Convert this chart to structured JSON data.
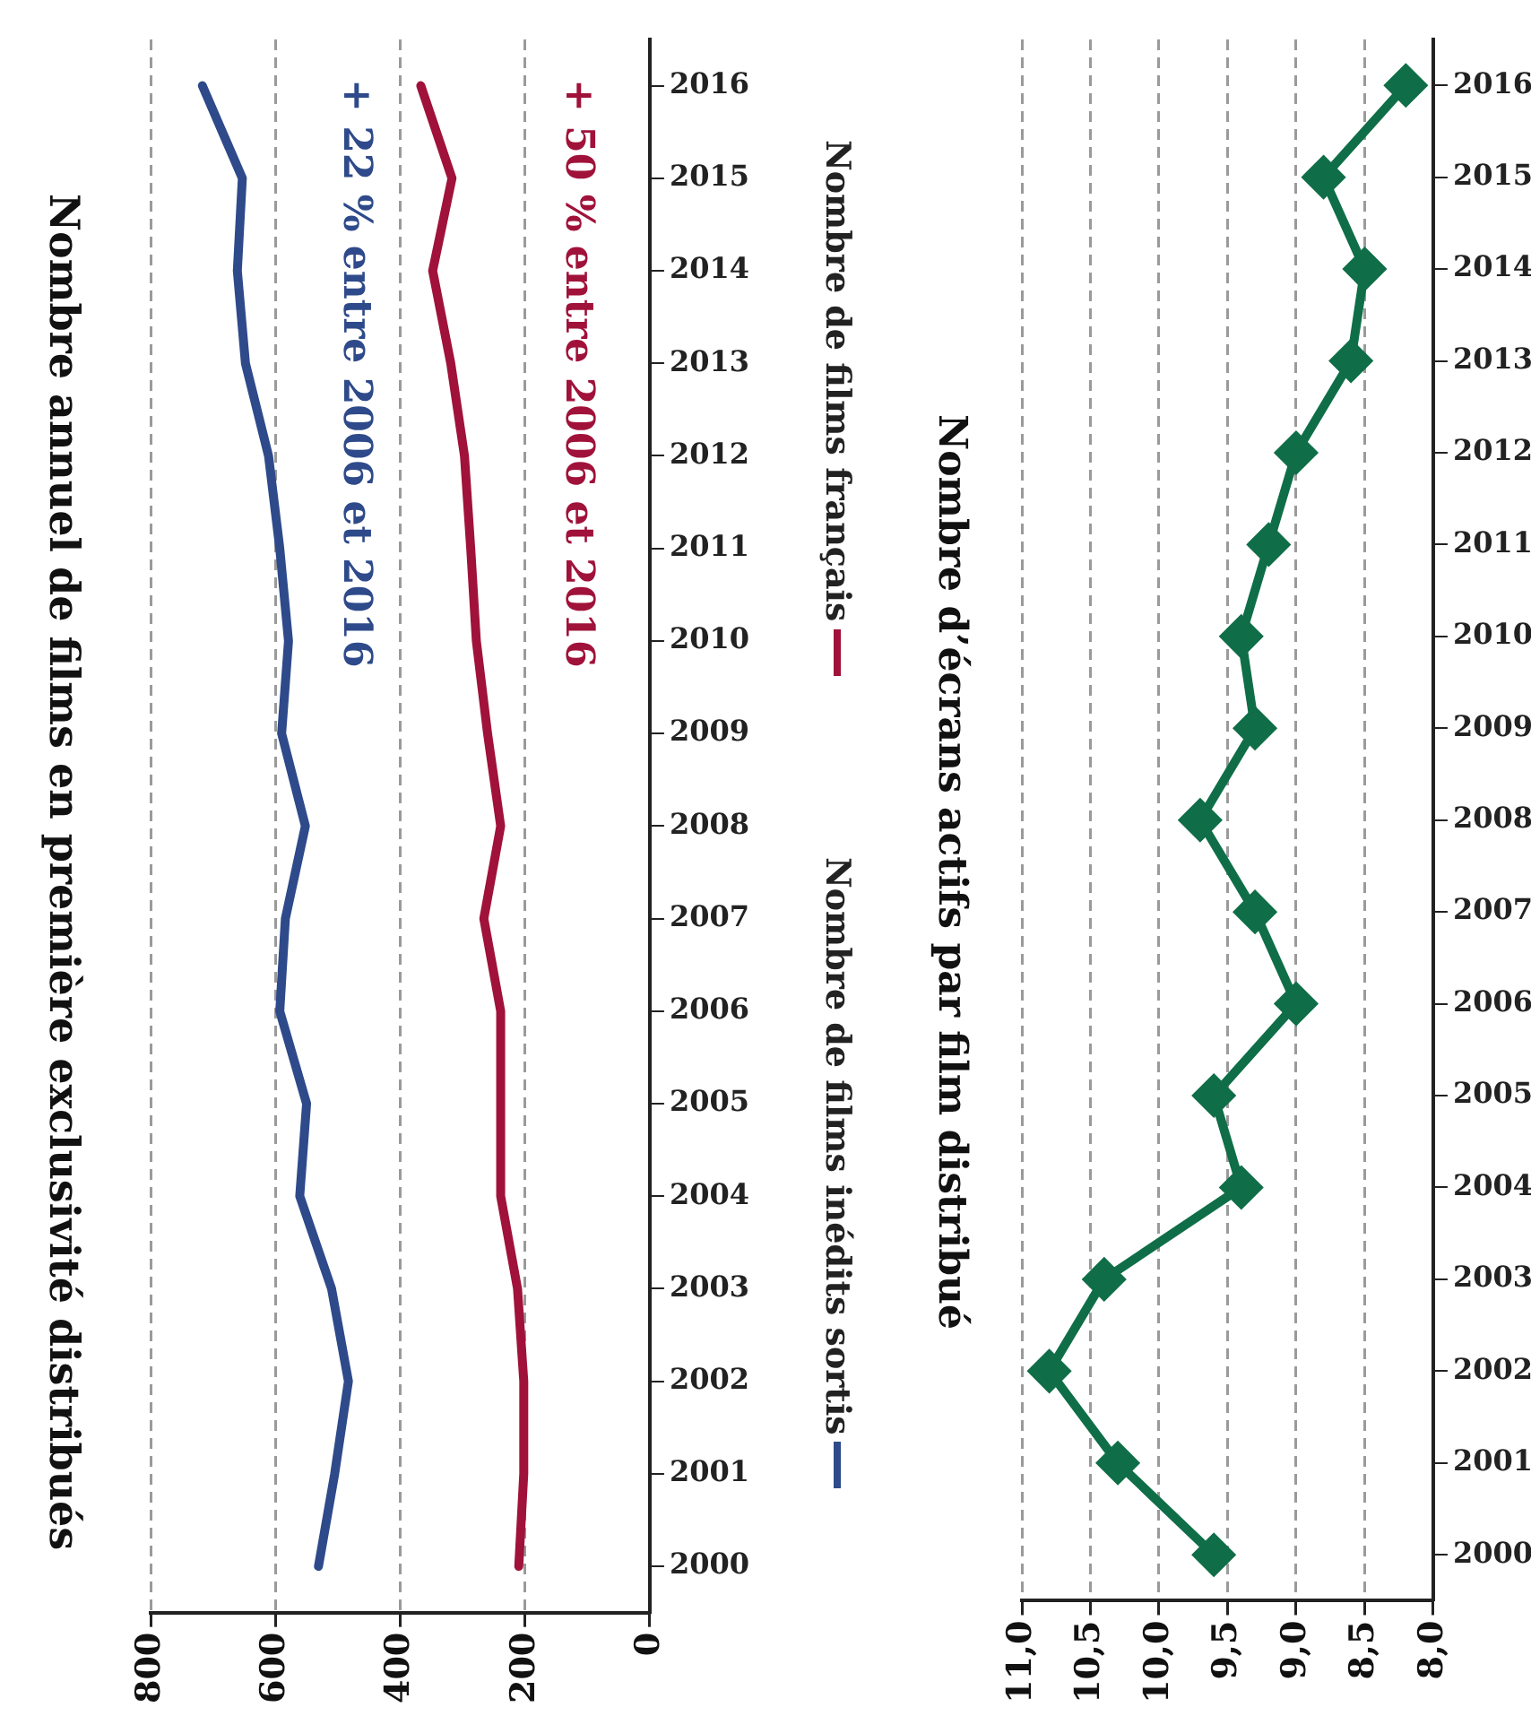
{
  "chart_data": [
    {
      "type": "line",
      "orientation": "horizontal",
      "title": "Nombre annuel de films en première exclusivité distribués",
      "categories": [
        "2016",
        "2015",
        "2014",
        "2013",
        "2012",
        "2011",
        "2010",
        "2009",
        "2008",
        "2007",
        "2006",
        "2005",
        "2004",
        "2003",
        "2002",
        "2001",
        "2000"
      ],
      "series": [
        {
          "name": "Nombre de films inédits sortis",
          "color": "#2e4a8a",
          "values": [
            717,
            653,
            661,
            648,
            611,
            593,
            579,
            590,
            552,
            584,
            593,
            550,
            561,
            510,
            483,
            505,
            531
          ]
        },
        {
          "name": "Nombre de films français",
          "color": "#a0123a",
          "values": [
            367,
            317,
            348,
            319,
            297,
            287,
            278,
            260,
            239,
            266,
            239,
            239,
            239,
            212,
            202,
            202,
            210
          ]
        }
      ],
      "annotations": [
        "+ 22 % entre 2006 et 2016",
        "+ 50 % entre 2006 et 2016"
      ],
      "xlim": [
        800,
        0
      ],
      "xticks": [
        800,
        600,
        400,
        200,
        0
      ],
      "grid": "x",
      "legend": "right",
      "marker": "none",
      "line_style": "solid"
    },
    {
      "type": "line",
      "orientation": "horizontal",
      "title": "Nombre d’écrans actifs par film distribué",
      "categories": [
        "2016",
        "2015",
        "2014",
        "2013",
        "2012",
        "2011",
        "2010",
        "2009",
        "2008",
        "2007",
        "2006",
        "2005",
        "2004",
        "2003",
        "2002",
        "2001",
        "2000"
      ],
      "series": [
        {
          "color": "#0f6e48",
          "values": [
            8.2,
            8.8,
            8.5,
            8.6,
            9.0,
            9.2,
            9.4,
            9.3,
            9.7,
            9.3,
            9.0,
            9.6,
            9.4,
            10.4,
            10.8,
            10.3,
            9.6
          ]
        }
      ],
      "xlim": [
        11,
        8
      ],
      "xticks": [
        {
          "value": 11,
          "label": "11,0"
        },
        {
          "value": 10.5,
          "label": "10,5"
        },
        {
          "value": 10,
          "label": "10,0"
        },
        {
          "value": 9.5,
          "label": "9,5"
        },
        {
          "value": 9,
          "label": "9,0"
        },
        {
          "value": 8.5,
          "label": "8,5"
        },
        {
          "value": 8,
          "label": "8,0"
        }
      ],
      "grid": "x",
      "legend": false,
      "marker": "diamond",
      "line_style": "solid"
    }
  ]
}
